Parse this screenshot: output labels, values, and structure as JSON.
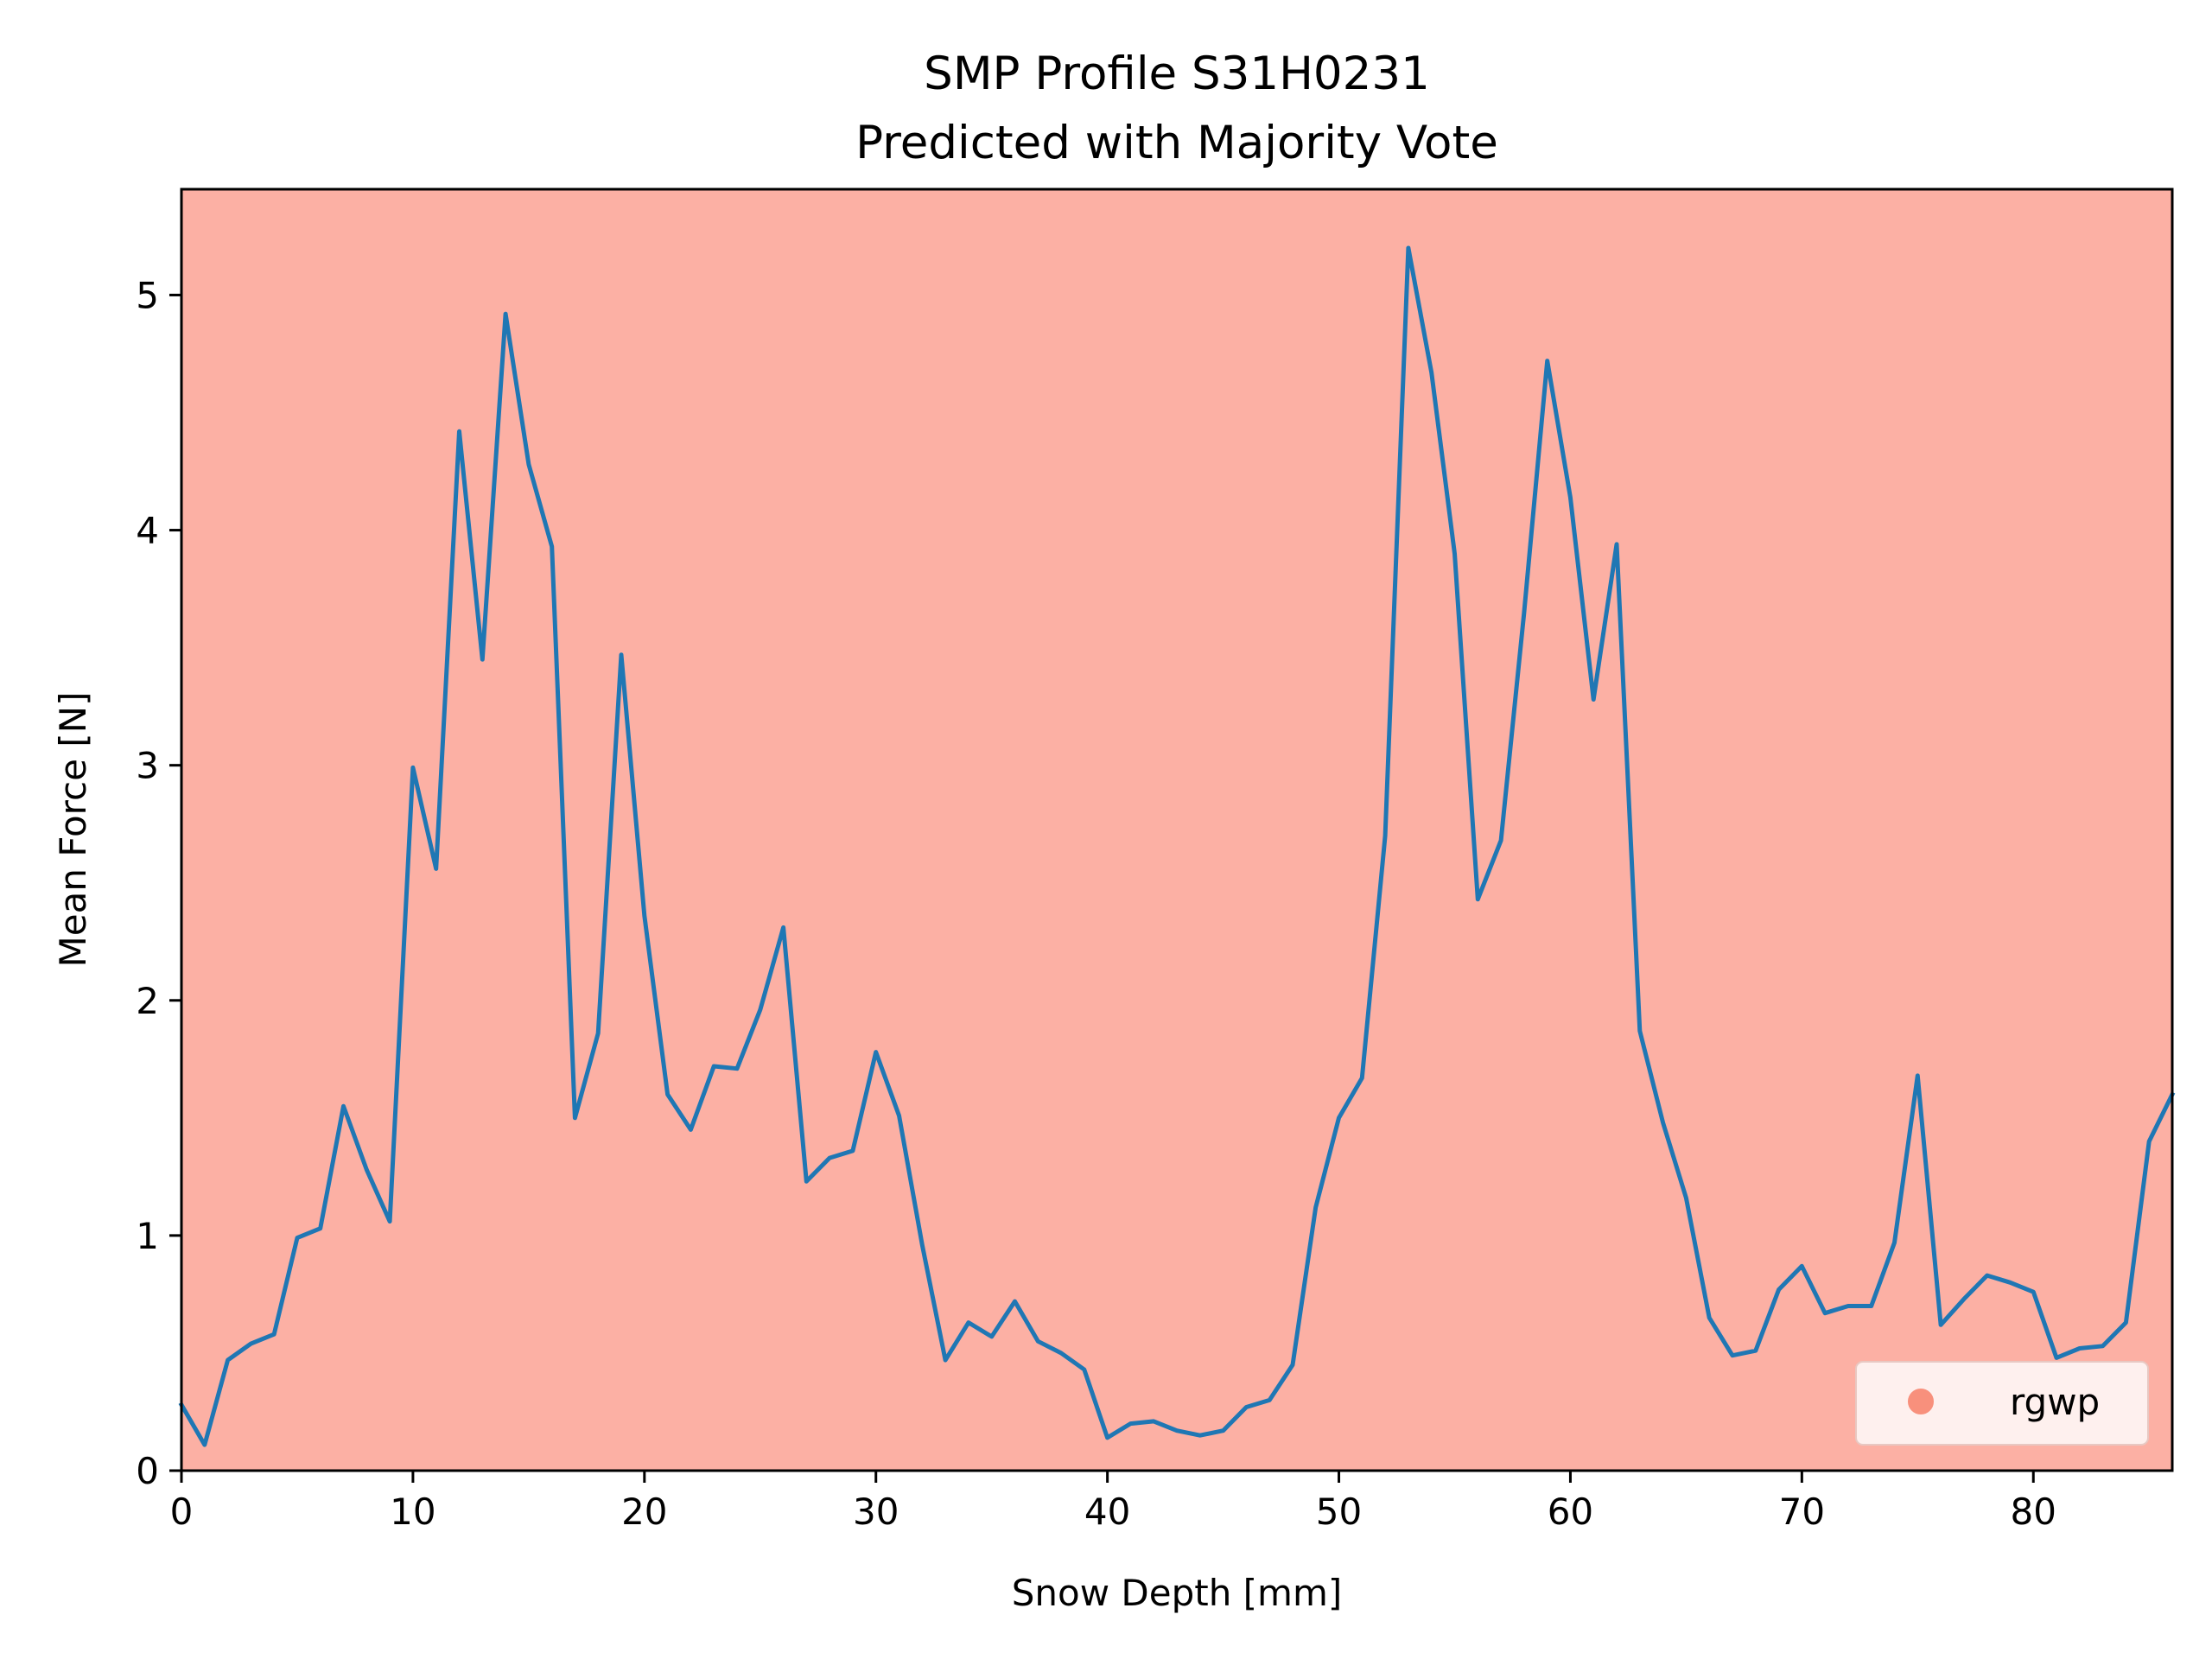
{
  "chart_data": {
    "type": "line",
    "title": "SMP Profile S31H0231",
    "subtitle": "Predicted with Majority Vote",
    "xlabel": "Snow Depth [mm]",
    "ylabel": "Mean Force [N]",
    "xlim": [
      0,
      86
    ],
    "ylim": [
      0,
      5.45
    ],
    "xticks": [
      0,
      10,
      20,
      30,
      40,
      50,
      60,
      70,
      80
    ],
    "yticks": [
      0,
      1,
      2,
      3,
      4,
      5
    ],
    "background_color": "#fcb0a4",
    "line_color": "#1f77b4",
    "grid": false,
    "legend": {
      "position": "bottom-right",
      "entries": [
        {
          "label": "rgwp",
          "marker": "circle",
          "color": "#f8907c"
        }
      ]
    },
    "series": [
      {
        "name": "mean force",
        "x": [
          0,
          1,
          2,
          3,
          4,
          5,
          6,
          7,
          8,
          9,
          10,
          11,
          12,
          13,
          14,
          15,
          16,
          17,
          18,
          19,
          20,
          21,
          22,
          23,
          24,
          25,
          26,
          27,
          28,
          29,
          30,
          31,
          32,
          33,
          34,
          35,
          36,
          37,
          38,
          39,
          40,
          41,
          42,
          43,
          44,
          45,
          46,
          47,
          48,
          49,
          50,
          51,
          52,
          53,
          54,
          55,
          56,
          57,
          58,
          59,
          60,
          61,
          62,
          63,
          64,
          65,
          66,
          67,
          68,
          69,
          70,
          71,
          72,
          73,
          74,
          75,
          76,
          77,
          78,
          79,
          80,
          81,
          82,
          83,
          84,
          85,
          86
        ],
        "values": [
          0.28,
          0.11,
          0.47,
          0.54,
          0.58,
          0.99,
          1.03,
          1.55,
          1.28,
          1.06,
          2.99,
          2.56,
          4.42,
          3.45,
          4.92,
          4.28,
          3.93,
          1.5,
          1.86,
          3.47,
          2.36,
          1.6,
          1.45,
          1.72,
          1.71,
          1.96,
          2.31,
          1.23,
          1.33,
          1.36,
          1.78,
          1.51,
          0.96,
          0.47,
          0.63,
          0.57,
          0.72,
          0.55,
          0.5,
          0.43,
          0.14,
          0.2,
          0.21,
          0.17,
          0.15,
          0.17,
          0.27,
          0.3,
          0.45,
          1.12,
          1.5,
          1.67,
          2.7,
          5.2,
          4.67,
          3.9,
          2.43,
          2.68,
          3.65,
          4.72,
          4.14,
          3.28,
          3.94,
          1.87,
          1.48,
          1.16,
          0.65,
          0.49,
          0.51,
          0.77,
          0.87,
          0.67,
          0.7,
          0.7,
          0.97,
          1.68,
          0.62,
          0.73,
          0.83,
          0.8,
          0.76,
          0.48,
          0.52,
          0.53,
          0.63,
          1.4,
          1.6
        ]
      }
    ]
  }
}
